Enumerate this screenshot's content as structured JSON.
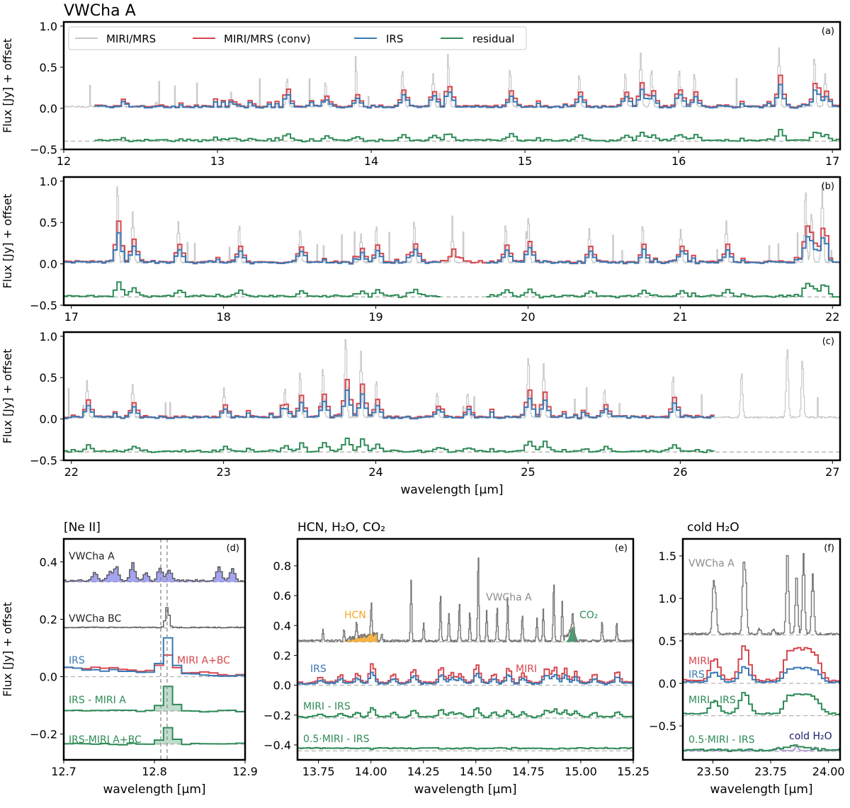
{
  "figure_title": "VWCha A",
  "colors": {
    "miri": "#c8c8c8",
    "miri_conv": "#d6474f",
    "irs": "#3a78b3",
    "residual": "#2e8b57",
    "dashed": "#b3b3b3",
    "hcn_fill": "#f5a623",
    "co2_fill": "#2e8b57",
    "neii_fill": "#5a5ae6",
    "dark": "#555555",
    "navy": "#1a1a6e"
  },
  "chart_data": [
    {
      "id": "a",
      "panel_label": "(a)",
      "type": "line",
      "xlim": [
        12.0,
        17.05
      ],
      "ylim": [
        -0.5,
        1.05
      ],
      "xticks": [
        12,
        13,
        14,
        15,
        16,
        17
      ],
      "yticks": [
        -0.5,
        0.0,
        0.5,
        1.0
      ],
      "ylabel": "Flux [Jy] + offset",
      "xlabel": "",
      "legend": [
        "MIRI/MRS",
        "MIRI/MRS (conv)",
        "IRS",
        "residual"
      ],
      "residual_offset": -0.4,
      "miri_range": [
        12.0,
        17.05
      ],
      "conv_range": [
        12.2,
        17.05
      ],
      "irs_range": [
        12.2,
        17.05
      ],
      "res_range": [
        12.2,
        17.05
      ],
      "lines": [
        [
          12.38,
          0.1
        ],
        [
          12.6,
          0.05
        ],
        [
          13.1,
          0.06
        ],
        [
          13.45,
          0.35
        ],
        [
          13.7,
          0.3
        ],
        [
          13.9,
          0.3
        ],
        [
          14.2,
          0.45
        ],
        [
          14.4,
          0.4
        ],
        [
          14.5,
          0.5
        ],
        [
          14.9,
          0.45
        ],
        [
          15.35,
          0.4
        ],
        [
          15.65,
          0.4
        ],
        [
          15.75,
          0.65
        ],
        [
          15.82,
          0.45
        ],
        [
          16.0,
          0.45
        ],
        [
          16.1,
          0.4
        ],
        [
          16.65,
          0.72
        ],
        [
          16.88,
          0.6
        ],
        [
          16.95,
          0.4
        ]
      ]
    },
    {
      "id": "b",
      "panel_label": "(b)",
      "type": "line",
      "xlim": [
        16.95,
        22.05
      ],
      "ylim": [
        -0.5,
        1.05
      ],
      "xticks": [
        17,
        18,
        19,
        20,
        21,
        22
      ],
      "yticks": [
        -0.5,
        0.0,
        0.5,
        1.0
      ],
      "ylabel": "Flux [Jy] + offset",
      "xlabel": "",
      "residual_offset": -0.4,
      "miri_range": [
        16.95,
        22.05
      ],
      "conv_range": [
        16.95,
        22.05
      ],
      "irs_range": [
        16.95,
        19.4,
        19.7,
        22.05
      ],
      "res_range": [
        16.95,
        19.4,
        19.7,
        22.05
      ],
      "lines": [
        [
          17.3,
          0.95
        ],
        [
          17.4,
          0.6
        ],
        [
          17.7,
          0.5
        ],
        [
          18.1,
          0.45
        ],
        [
          18.5,
          0.4
        ],
        [
          18.9,
          0.35
        ],
        [
          19.0,
          0.45
        ],
        [
          19.25,
          0.5
        ],
        [
          19.5,
          0.35
        ],
        [
          19.85,
          0.45
        ],
        [
          20.0,
          0.55
        ],
        [
          20.4,
          0.4
        ],
        [
          20.75,
          0.45
        ],
        [
          21.0,
          0.4
        ],
        [
          21.3,
          0.5
        ],
        [
          21.82,
          0.88
        ],
        [
          21.86,
          0.6
        ],
        [
          21.93,
          0.95
        ]
      ]
    },
    {
      "id": "c",
      "panel_label": "(c)",
      "type": "line",
      "xlim": [
        21.95,
        27.05
      ],
      "ylim": [
        -0.5,
        1.05
      ],
      "xticks": [
        22,
        23,
        24,
        25,
        26,
        27
      ],
      "yticks": [
        -0.5,
        0.0,
        0.5,
        1.0
      ],
      "ylabel": "Flux [Jy] + offset",
      "xlabel": "wavelength [μm]",
      "residual_offset": -0.4,
      "miri_range": [
        21.95,
        27.05
      ],
      "conv_range": [
        21.95,
        26.2
      ],
      "irs_range": [
        21.95,
        26.2
      ],
      "res_range": [
        21.95,
        26.2
      ],
      "lines": [
        [
          22.1,
          0.45
        ],
        [
          22.4,
          0.4
        ],
        [
          23.0,
          0.35
        ],
        [
          23.4,
          0.35
        ],
        [
          23.5,
          0.55
        ],
        [
          23.65,
          0.6
        ],
        [
          23.8,
          0.98
        ],
        [
          23.9,
          0.8
        ],
        [
          24.0,
          0.45
        ],
        [
          24.4,
          0.3
        ],
        [
          24.6,
          0.3
        ],
        [
          25.0,
          0.75
        ],
        [
          25.1,
          0.65
        ],
        [
          25.5,
          0.35
        ],
        [
          25.95,
          0.5
        ],
        [
          26.4,
          0.55
        ],
        [
          26.7,
          0.85
        ],
        [
          26.8,
          0.7
        ]
      ]
    },
    {
      "id": "d",
      "panel_label": "(d)",
      "type": "line",
      "panel_title": "[Ne II]",
      "xlim": [
        12.7,
        12.9
      ],
      "ylim": [
        -0.29,
        0.48
      ],
      "xticks": [
        12.7,
        12.8,
        12.9
      ],
      "yticks": [
        -0.2,
        0.0,
        0.2,
        0.4
      ],
      "ylabel": "Flux [Jy] + offset",
      "xlabel": "wavelength [μm]",
      "vlines": [
        12.807,
        12.814
      ],
      "annotations": [
        "VWCha A",
        "VWCha BC",
        "IRS",
        "MIRI A+BC",
        "IRS - MIRI A",
        "IRS-MIRI A+BC"
      ]
    },
    {
      "id": "e",
      "panel_label": "(e)",
      "type": "line",
      "panel_title": "HCN, H₂O, CO₂",
      "xlim": [
        13.65,
        15.25
      ],
      "ylim": [
        -0.5,
        0.98
      ],
      "xticks": [
        13.75,
        14.0,
        14.25,
        14.5,
        14.75,
        15.0,
        15.25
      ],
      "yticks": [
        -0.4,
        -0.2,
        0.0,
        0.2,
        0.4,
        0.6,
        0.8
      ],
      "ylabel": "",
      "xlabel": "wavelength [μm]",
      "annotations": [
        "HCN",
        "VWCha A",
        "CO₂",
        "IRS",
        "MIRI",
        "MIRI - IRS",
        "0.5·MIRI - IRS"
      ]
    },
    {
      "id": "f",
      "panel_label": "(f)",
      "type": "line",
      "panel_title": "cold H₂O",
      "xlim": [
        23.37,
        24.05
      ],
      "ylim": [
        -0.9,
        1.7
      ],
      "xticks": [
        23.5,
        23.75,
        24.0
      ],
      "yticks": [
        -0.5,
        0.0,
        0.5,
        1.0,
        1.5
      ],
      "ylabel": "",
      "xlabel": "wavelength [μm]",
      "annotations": [
        "VWCha A",
        "MIRI",
        "IRS",
        "MIRI - IRS",
        "0.5·MIRI - IRS",
        "cold H₂O"
      ]
    }
  ]
}
